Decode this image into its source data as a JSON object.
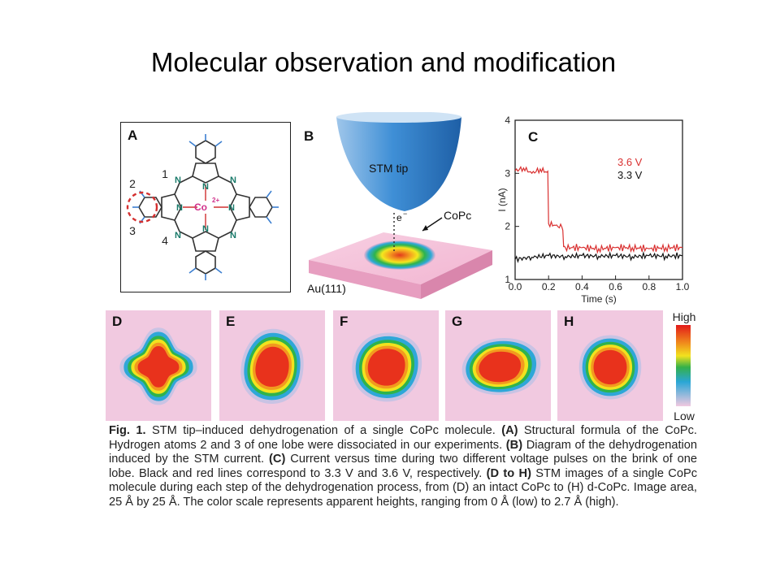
{
  "slide": {
    "title": "Molecular observation and modification"
  },
  "panels": {
    "a": {
      "letter": "A",
      "metal_label": "Co",
      "metal_charge": "2+",
      "nitrogen_label": "N",
      "position_labels": [
        "1",
        "2",
        "3",
        "4"
      ]
    },
    "b": {
      "letter": "B",
      "tip_label": "STM tip",
      "electron_label": "e",
      "electron_sup": "−",
      "molecule_label": "CoPc",
      "substrate_label": "Au(111)"
    },
    "c": {
      "letter": "C",
      "legend": [
        "3.6 V",
        "3.3 V"
      ],
      "legend_colors": [
        "#d93030",
        "#111111"
      ]
    },
    "stm_images": [
      {
        "letter": "D",
        "icon": "stm-image-intact-copc"
      },
      {
        "letter": "E",
        "icon": "stm-image-step-1"
      },
      {
        "letter": "F",
        "icon": "stm-image-step-2"
      },
      {
        "letter": "G",
        "icon": "stm-image-step-3"
      },
      {
        "letter": "H",
        "icon": "stm-image-d-copc"
      }
    ],
    "color_scale": {
      "high": "High",
      "low": "Low"
    }
  },
  "chart_data": {
    "type": "line",
    "xlabel": "Time (s)",
    "ylabel": "I (nA)",
    "xlim": [
      0.0,
      1.0
    ],
    "ylim": [
      1,
      4
    ],
    "xticks": [
      "0.0",
      "0.2",
      "0.4",
      "0.6",
      "0.8",
      "1.0"
    ],
    "yticks": [
      "1",
      "2",
      "3",
      "4"
    ],
    "series": [
      {
        "name": "3.6 V",
        "color": "#d93030",
        "x": [
          0.0,
          0.05,
          0.1,
          0.15,
          0.19,
          0.2,
          0.24,
          0.28,
          0.29,
          0.3,
          0.4,
          0.5,
          0.6,
          0.7,
          0.8,
          0.9,
          1.0
        ],
        "y": [
          3.05,
          3.1,
          3.0,
          3.08,
          3.02,
          2.05,
          2.02,
          1.98,
          1.62,
          1.6,
          1.6,
          1.58,
          1.6,
          1.6,
          1.58,
          1.6,
          1.6
        ]
      },
      {
        "name": "3.3 V",
        "color": "#111111",
        "x": [
          0.0,
          0.1,
          0.2,
          0.3,
          0.4,
          0.5,
          0.6,
          0.7,
          0.8,
          0.9,
          1.0
        ],
        "y": [
          1.38,
          1.42,
          1.45,
          1.43,
          1.45,
          1.44,
          1.45,
          1.43,
          1.45,
          1.44,
          1.45
        ]
      }
    ]
  },
  "caption": {
    "fig_label": "Fig. 1.",
    "parts": [
      {
        "t": " STM tip–induced dehydrogenation of a single CoPc molecule. ",
        "b": false
      },
      {
        "t": "(A)",
        "b": true
      },
      {
        "t": " Structural formula of the CoPc. Hydrogen atoms 2 and 3 of one lobe were dissociated in our experiments. ",
        "b": false
      },
      {
        "t": "(B)",
        "b": true
      },
      {
        "t": " Diagram of the dehydrogenation induced by the STM current. ",
        "b": false
      },
      {
        "t": "(C)",
        "b": true
      },
      {
        "t": " Current versus time during two different voltage pulses on the brink of one lobe. Black and red lines correspond to 3.3 V and 3.6 V, respectively. ",
        "b": false
      },
      {
        "t": "(D to H)",
        "b": true
      },
      {
        "t": " STM images of a single CoPc molecule during each step of the dehydrogenation process, from ",
        "b": false
      },
      {
        "t": "(D)",
        "b": false
      },
      {
        "t": " an intact CoPc to ",
        "b": false
      },
      {
        "t": "(H)",
        "b": false
      },
      {
        "t": " d-CoPc. Image area, 25 Å by 25 Å. The color scale represents apparent heights, ranging from 0 Å (low) to 2.7 Å (high).",
        "b": false
      }
    ]
  }
}
